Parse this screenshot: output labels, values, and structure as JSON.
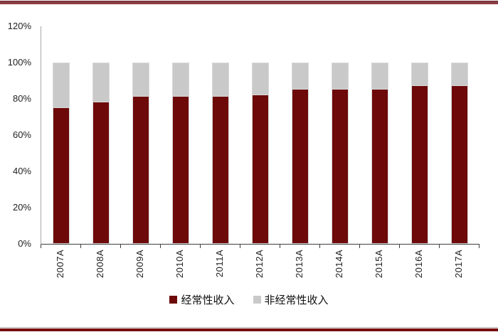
{
  "page": {
    "background": "#ffffff",
    "top_border_color": "#8d3c44",
    "bottom_border_color": "#750b0d"
  },
  "chart_data": {
    "type": "bar",
    "stacked": true,
    "title": "",
    "xlabel": "",
    "ylabel": "",
    "categories": [
      "2007A",
      "2008A",
      "2009A",
      "2010A",
      "2011A",
      "2012A",
      "2013A",
      "2014A",
      "2015A",
      "2016A",
      "2017A"
    ],
    "series": [
      {
        "name": "经常性收入",
        "color": "#6e0909",
        "values": [
          75,
          78,
          81,
          81,
          81,
          82,
          85,
          85,
          85,
          87,
          87
        ]
      },
      {
        "name": "非经常性收入",
        "color": "#c9c9c9",
        "values": [
          25,
          22,
          19,
          19,
          19,
          18,
          15,
          15,
          15,
          13,
          13
        ]
      }
    ],
    "ylim": [
      0,
      120
    ],
    "ytick_step": 20,
    "ytick_labels": [
      "0%",
      "20%",
      "40%",
      "60%",
      "80%",
      "100%",
      "120%"
    ],
    "grid": false,
    "legend_position": "bottom",
    "bar_border_color": "#d9d9d9",
    "axis_color": "#3f3f3f"
  }
}
